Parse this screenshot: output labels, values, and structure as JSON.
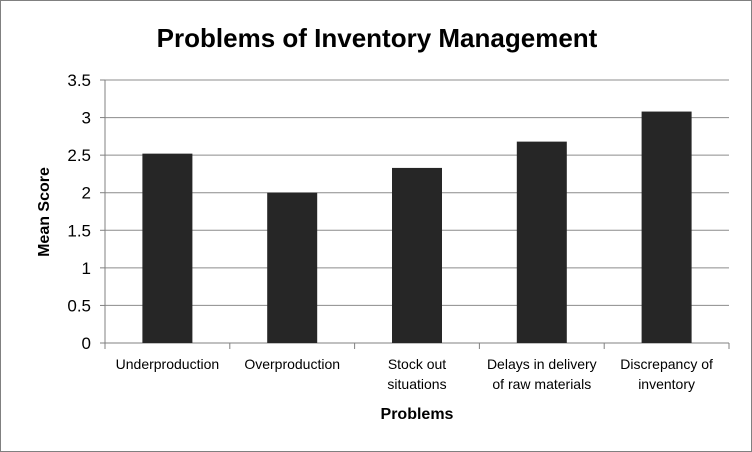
{
  "chart_data": {
    "type": "bar",
    "title": "Problems of Inventory Management",
    "xlabel": "Problems",
    "ylabel": "Mean Score",
    "categories": [
      [
        "Underproduction"
      ],
      [
        "Overproduction"
      ],
      [
        "Stock out",
        "situations"
      ],
      [
        "Delays in delivery",
        "of raw materials"
      ],
      [
        "Discrepancy of",
        "inventory"
      ]
    ],
    "values": [
      2.52,
      2.0,
      2.33,
      2.68,
      3.08
    ],
    "ylim": [
      0,
      3.5
    ],
    "yticks": [
      "0",
      "0.5",
      "1",
      "1.5",
      "2",
      "2.5",
      "3",
      "3.5"
    ],
    "grid": true,
    "legend": "none",
    "colors": {
      "bar": "#262626",
      "grid": "#8c8c8c",
      "axis": "#808080"
    }
  }
}
